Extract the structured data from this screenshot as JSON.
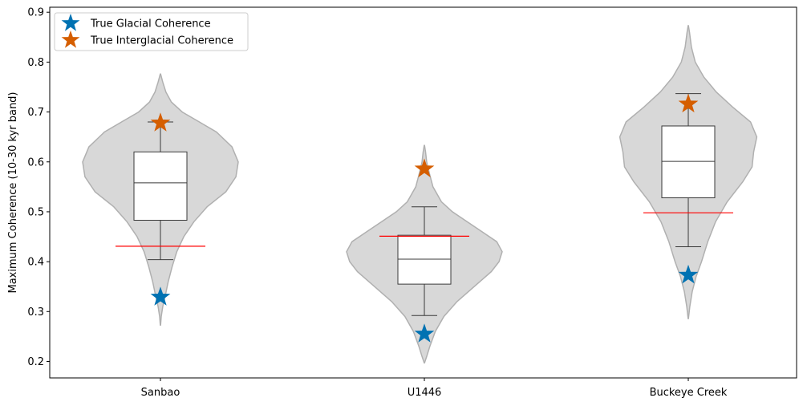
{
  "chart_data": {
    "type": "violin",
    "title": "",
    "xlabel": "",
    "ylabel": "Maximum Coherence (10-30 kyr band)",
    "ylim": [
      0.167,
      0.91
    ],
    "yticks": [
      0.2,
      0.3,
      0.4,
      0.5,
      0.6,
      0.7,
      0.8,
      0.9
    ],
    "ytick_labels": [
      "0.2",
      "0.3",
      "0.4",
      "0.5",
      "0.6",
      "0.7",
      "0.8",
      "0.9"
    ],
    "categories": [
      "Sanbao",
      "U1446",
      "Buckeye Creek"
    ],
    "violins": [
      {
        "name": "Sanbao",
        "profile": [
          [
            0.273,
            0.002
          ],
          [
            0.29,
            0.01
          ],
          [
            0.31,
            0.03
          ],
          [
            0.33,
            0.06
          ],
          [
            0.36,
            0.1
          ],
          [
            0.39,
            0.15
          ],
          [
            0.42,
            0.21
          ],
          [
            0.45,
            0.3
          ],
          [
            0.48,
            0.43
          ],
          [
            0.51,
            0.6
          ],
          [
            0.54,
            0.84
          ],
          [
            0.57,
            0.97
          ],
          [
            0.6,
            1.0
          ],
          [
            0.63,
            0.92
          ],
          [
            0.66,
            0.72
          ],
          [
            0.68,
            0.5
          ],
          [
            0.7,
            0.28
          ],
          [
            0.72,
            0.14
          ],
          [
            0.74,
            0.07
          ],
          [
            0.76,
            0.03
          ],
          [
            0.776,
            0.002
          ]
        ],
        "box": {
          "q1": 0.483,
          "median": 0.558,
          "q3": 0.62,
          "whisker_low": 0.404,
          "whisker_high": 0.68
        },
        "threshold": 0.431,
        "glacial": 0.329,
        "interglacial": 0.678
      },
      {
        "name": "U1446",
        "profile": [
          [
            0.197,
            0.002
          ],
          [
            0.21,
            0.03
          ],
          [
            0.23,
            0.07
          ],
          [
            0.26,
            0.14
          ],
          [
            0.29,
            0.25
          ],
          [
            0.32,
            0.42
          ],
          [
            0.35,
            0.64
          ],
          [
            0.38,
            0.86
          ],
          [
            0.4,
            0.96
          ],
          [
            0.42,
            1.0
          ],
          [
            0.44,
            0.93
          ],
          [
            0.46,
            0.74
          ],
          [
            0.48,
            0.55
          ],
          [
            0.5,
            0.36
          ],
          [
            0.52,
            0.22
          ],
          [
            0.55,
            0.11
          ],
          [
            0.58,
            0.06
          ],
          [
            0.6,
            0.03
          ],
          [
            0.62,
            0.015
          ],
          [
            0.633,
            0.002
          ]
        ],
        "box": {
          "q1": 0.355,
          "median": 0.405,
          "q3": 0.453,
          "whisker_low": 0.292,
          "whisker_high": 0.51
        },
        "threshold": 0.451,
        "glacial": 0.255,
        "interglacial": 0.586
      },
      {
        "name": "Buckeye Creek",
        "profile": [
          [
            0.286,
            0.002
          ],
          [
            0.31,
            0.02
          ],
          [
            0.34,
            0.05
          ],
          [
            0.37,
            0.1
          ],
          [
            0.4,
            0.17
          ],
          [
            0.44,
            0.25
          ],
          [
            0.48,
            0.35
          ],
          [
            0.52,
            0.5
          ],
          [
            0.56,
            0.7
          ],
          [
            0.59,
            0.82
          ],
          [
            0.62,
            0.84
          ],
          [
            0.65,
            0.88
          ],
          [
            0.68,
            0.8
          ],
          [
            0.71,
            0.57
          ],
          [
            0.74,
            0.36
          ],
          [
            0.77,
            0.2
          ],
          [
            0.8,
            0.09
          ],
          [
            0.83,
            0.04
          ],
          [
            0.86,
            0.015
          ],
          [
            0.873,
            0.002
          ]
        ],
        "box": {
          "q1": 0.528,
          "median": 0.601,
          "q3": 0.672,
          "whisker_low": 0.43,
          "whisker_high": 0.737
        },
        "threshold": 0.498,
        "glacial": 0.373,
        "interglacial": 0.716
      }
    ],
    "legend": {
      "position": "top-left",
      "entries": [
        {
          "label": "True Glacial Coherence",
          "color": "#0072b2",
          "marker": "star"
        },
        {
          "label": "True Interglacial Coherence",
          "color": "#d55e00",
          "marker": "star"
        }
      ]
    },
    "colors": {
      "violin_fill": "#d8d8d8",
      "violin_edge": "#b0b0b0",
      "box_edge": "#3a3a3a",
      "threshold_line": "#ff0000",
      "glacial": "#0072b2",
      "interglacial": "#d55e00"
    }
  }
}
